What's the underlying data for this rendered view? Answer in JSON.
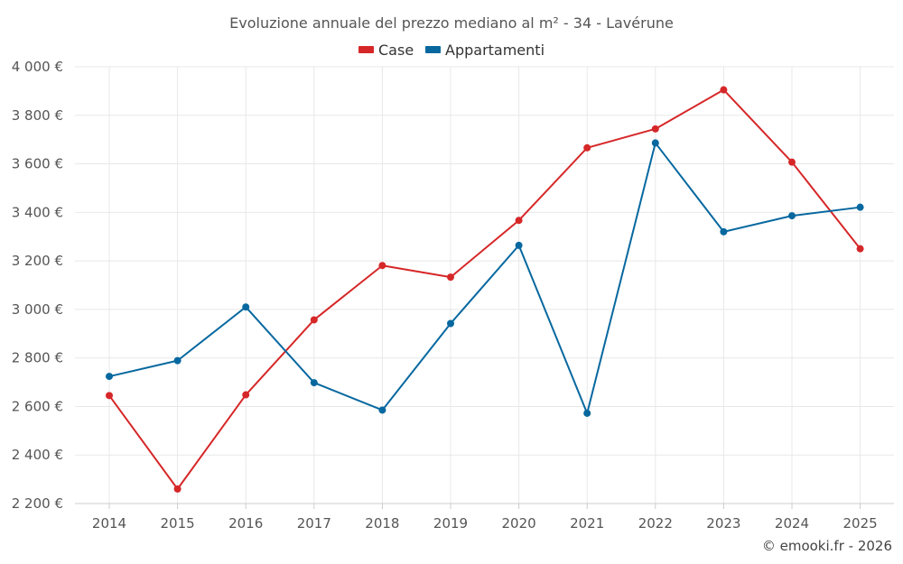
{
  "chart_data": {
    "type": "line",
    "title": "Evoluzione annuale del prezzo mediano al m² - 34 - Lavérune",
    "xlabel": "",
    "ylabel": "",
    "categories": [
      "2014",
      "2015",
      "2016",
      "2017",
      "2018",
      "2019",
      "2020",
      "2021",
      "2022",
      "2023",
      "2024",
      "2025"
    ],
    "ylim": [
      2200,
      4000
    ],
    "y_ticks": [
      2200,
      2400,
      2600,
      2800,
      3000,
      3200,
      3400,
      3600,
      3800,
      4000
    ],
    "y_tick_labels": [
      "2 200 €",
      "2 400 €",
      "2 600 €",
      "2 800 €",
      "3 000 €",
      "3 200 €",
      "3 400 €",
      "3 600 €",
      "3 800 €",
      "4 000 €"
    ],
    "grid": true,
    "legend_position": "top-center",
    "series": [
      {
        "name": "Case",
        "color": "#d62728",
        "values": [
          2645,
          2260,
          2648,
          2957,
          3181,
          3133,
          3367,
          3666,
          3744,
          3905,
          3607,
          3250
        ]
      },
      {
        "name": "Appartamenti",
        "color": "#07689f",
        "values": [
          2724,
          2789,
          3010,
          2698,
          2585,
          2942,
          3264,
          2572,
          3686,
          3320,
          3386,
          3421
        ]
      }
    ]
  },
  "credit": "© emooki.fr - 2026"
}
